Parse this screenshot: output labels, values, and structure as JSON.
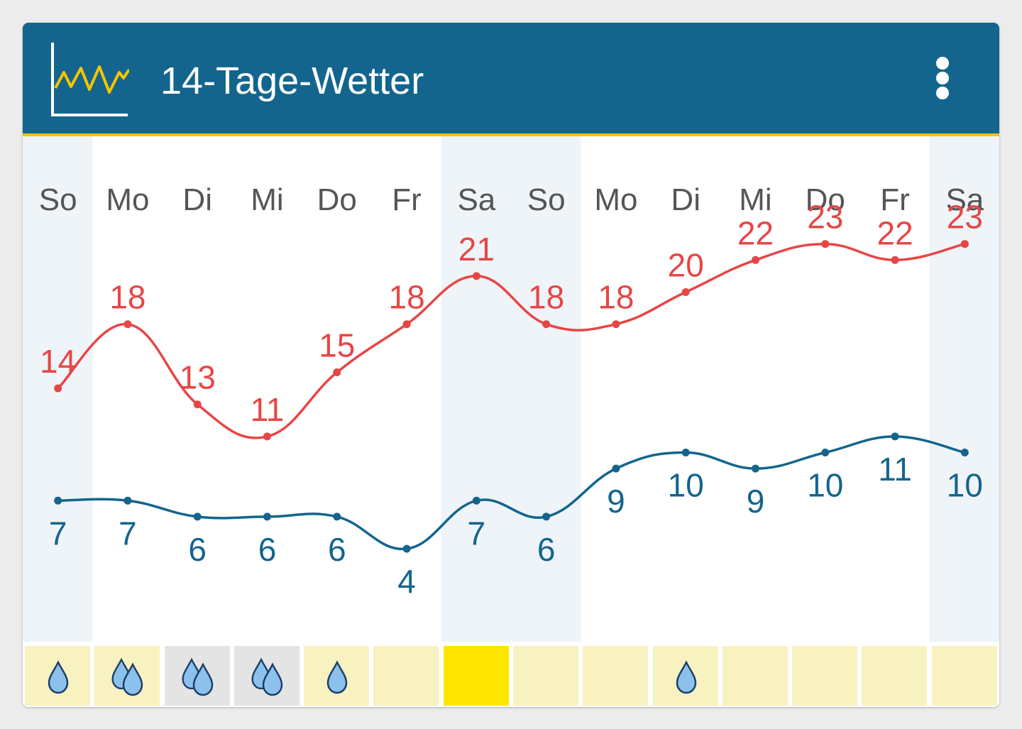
{
  "header": {
    "title": "14-Tage-Wetter",
    "icon": "line-chart-icon",
    "menu_icon": "more-vertical-icon"
  },
  "colors": {
    "header_bg": "#13658d",
    "accent_line": "#f5c400",
    "max_temp": "#e84545",
    "min_temp": "#13658d",
    "weekend_bg": "#eff4f8",
    "rain_cell_pale": "#f8f1c0",
    "rain_cell_grey": "#e4e4e4",
    "rain_cell_sun": "#ffe600",
    "drop": "#8cc1ee"
  },
  "chart_data": {
    "type": "line",
    "categories": [
      "So",
      "Mo",
      "Di",
      "Mi",
      "Do",
      "Fr",
      "Sa",
      "So",
      "Mo",
      "Di",
      "Mi",
      "Do",
      "Fr",
      "Sa"
    ],
    "weekend": [
      true,
      false,
      false,
      false,
      false,
      false,
      true,
      true,
      false,
      false,
      false,
      false,
      false,
      true
    ],
    "series": [
      {
        "values": [
          14,
          18,
          13,
          11,
          15,
          18,
          21,
          18,
          18,
          20,
          22,
          23,
          22,
          23
        ]
      },
      {
        "values": [
          7,
          7,
          6,
          6,
          6,
          4,
          7,
          6,
          9,
          10,
          9,
          10,
          11,
          10
        ]
      }
    ],
    "ylim": [
      4,
      23
    ]
  },
  "rain": [
    {
      "drops": 1,
      "shade": "pale"
    },
    {
      "drops": 2,
      "shade": "pale"
    },
    {
      "drops": 2,
      "shade": "grey"
    },
    {
      "drops": 2,
      "shade": "grey"
    },
    {
      "drops": 1,
      "shade": "pale"
    },
    {
      "drops": 0,
      "shade": "pale"
    },
    {
      "drops": 0,
      "shade": "sun"
    },
    {
      "drops": 0,
      "shade": "pale"
    },
    {
      "drops": 0,
      "shade": "pale"
    },
    {
      "drops": 1,
      "shade": "pale"
    },
    {
      "drops": 0,
      "shade": "pale"
    },
    {
      "drops": 0,
      "shade": "pale"
    },
    {
      "drops": 0,
      "shade": "pale"
    },
    {
      "drops": 0,
      "shade": "pale"
    }
  ]
}
